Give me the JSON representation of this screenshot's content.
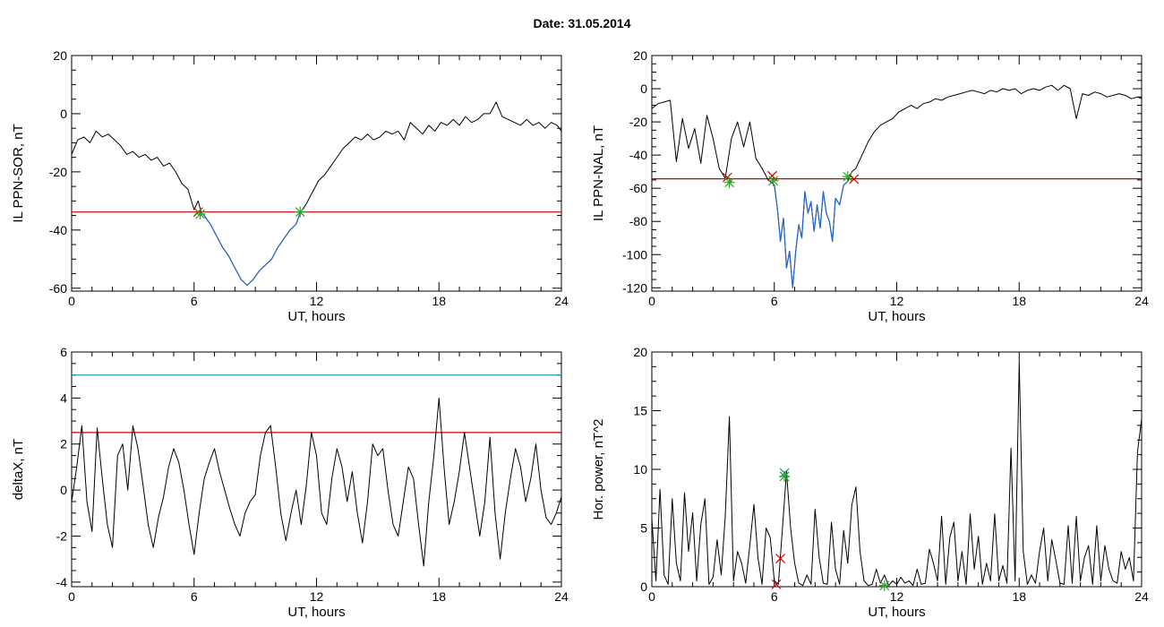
{
  "header": {
    "date_label": "Date:  31.05.2014"
  },
  "chart_data": [
    {
      "id": "sor",
      "type": "line",
      "title": "",
      "xlabel": "UT, hours",
      "ylabel": "IL PPN-SOR, nT",
      "xlim": [
        0,
        24
      ],
      "ylim": [
        -61,
        20
      ],
      "xticks": [
        0,
        6,
        12,
        18,
        24
      ],
      "yticks": [
        -60,
        -40,
        -20,
        0,
        20
      ],
      "grid": false,
      "threshold": {
        "value": -33.8,
        "color": "#cc0000"
      },
      "series": [
        {
          "color": "#000000",
          "x": [
            0,
            0.3,
            0.6,
            0.9,
            1.2,
            1.5,
            1.8,
            2.1,
            2.4,
            2.7,
            3.0,
            3.3,
            3.6,
            3.9,
            4.2,
            4.5,
            4.8,
            5.1,
            5.4,
            5.7,
            6.0,
            6.2,
            6.35,
            6.5,
            6.8,
            7.1,
            7.4,
            7.7,
            8.0,
            8.3,
            8.6,
            8.9,
            9.2,
            9.5,
            9.8,
            10.1,
            10.4,
            10.7,
            11.0,
            11.2,
            11.5,
            11.8,
            12.1,
            12.4,
            12.7,
            13.0,
            13.3,
            13.6,
            13.9,
            14.2,
            14.5,
            14.8,
            15.1,
            15.4,
            15.7,
            16.0,
            16.3,
            16.6,
            16.9,
            17.2,
            17.5,
            17.8,
            18.1,
            18.4,
            18.7,
            19.0,
            19.3,
            19.6,
            19.9,
            20.2,
            20.5,
            20.8,
            21.1,
            21.4,
            21.7,
            22.0,
            22.3,
            22.6,
            22.9,
            23.2,
            23.5,
            23.8,
            24.0
          ],
          "y": [
            -14,
            -9,
            -8,
            -10,
            -6,
            -8,
            -7,
            -9,
            -11,
            -14,
            -13,
            -15,
            -14,
            -16,
            -15,
            -18,
            -17,
            -20,
            -24,
            -26,
            -33,
            -30,
            -34,
            -35,
            -38,
            -42,
            -46,
            -49,
            -53,
            -57,
            -59,
            -57,
            -54,
            -52,
            -50,
            -46,
            -43,
            -40,
            -38,
            -34,
            -31,
            -27,
            -23,
            -21,
            -18,
            -15,
            -12,
            -10,
            -8,
            -9,
            -7,
            -9,
            -8,
            -6,
            -7,
            -6,
            -9,
            -3,
            -5,
            -7,
            -4,
            -6,
            -3,
            -4,
            -2,
            -4,
            -1,
            -3,
            -2,
            0,
            0,
            4,
            -1,
            -2,
            -3,
            -4,
            -2,
            -4,
            -3,
            -5,
            -3,
            -4,
            -6
          ]
        }
      ],
      "highlight": {
        "from": 6.3,
        "to": 11.2,
        "color": "#2266cc"
      },
      "markers": [
        {
          "x": 6.2,
          "y": -33.8,
          "symbol": "x",
          "color": "#cc0000"
        },
        {
          "x": 6.3,
          "y": -34.5,
          "symbol": "*",
          "color": "#22aa22"
        },
        {
          "x": 11.2,
          "y": -33.8,
          "symbol": "*",
          "color": "#22aa22"
        }
      ]
    },
    {
      "id": "nal",
      "type": "line",
      "title": "",
      "xlabel": "UT, hours",
      "ylabel": "IL PPN-NAL, nT",
      "xlim": [
        0,
        24
      ],
      "ylim": [
        -122,
        20
      ],
      "xticks": [
        0,
        6,
        12,
        18,
        24
      ],
      "yticks": [
        -120,
        -100,
        -80,
        -60,
        -40,
        -20,
        0,
        20
      ],
      "grid": false,
      "threshold": {
        "value": -54.3,
        "color": "#cc0000"
      },
      "series": [
        {
          "color": "#000000",
          "x": [
            0,
            0.3,
            0.6,
            0.9,
            1.2,
            1.5,
            1.8,
            2.1,
            2.4,
            2.7,
            3.0,
            3.3,
            3.6,
            3.9,
            4.2,
            4.5,
            4.8,
            5.1,
            5.4,
            5.7,
            6.0,
            6.15,
            6.3,
            6.45,
            6.6,
            6.75,
            6.9,
            7.05,
            7.2,
            7.35,
            7.5,
            7.65,
            7.8,
            7.95,
            8.1,
            8.25,
            8.4,
            8.55,
            8.7,
            8.85,
            9.0,
            9.2,
            9.4,
            9.6,
            9.8,
            10.0,
            10.3,
            10.6,
            10.9,
            11.2,
            11.5,
            11.8,
            12.1,
            12.4,
            12.7,
            13.0,
            13.3,
            13.6,
            13.9,
            14.2,
            14.5,
            14.8,
            15.1,
            15.4,
            15.7,
            16.0,
            16.3,
            16.6,
            16.9,
            17.2,
            17.5,
            17.8,
            18.1,
            18.4,
            18.7,
            19.0,
            19.3,
            19.6,
            19.9,
            20.2,
            20.5,
            20.8,
            21.1,
            21.4,
            21.7,
            22.0,
            22.3,
            22.6,
            22.9,
            23.2,
            23.5,
            23.8,
            24.0
          ],
          "y": [
            -12,
            -9,
            -8,
            -7,
            -44,
            -18,
            -36,
            -24,
            -45,
            -16,
            -30,
            -48,
            -54,
            -30,
            -20,
            -35,
            -20,
            -42,
            -48,
            -55,
            -58,
            -72,
            -92,
            -78,
            -108,
            -98,
            -120,
            -98,
            -82,
            -90,
            -62,
            -75,
            -68,
            -86,
            -70,
            -84,
            -62,
            -75,
            -80,
            -92,
            -66,
            -70,
            -58,
            -56,
            -50,
            -48,
            -40,
            -32,
            -26,
            -22,
            -20,
            -18,
            -14,
            -12,
            -10,
            -12,
            -9,
            -8,
            -6,
            -7,
            -5,
            -4,
            -3,
            -2,
            -1,
            -2,
            -3,
            -1,
            -2,
            0,
            -1,
            0,
            -3,
            -1,
            0,
            -1,
            1,
            2,
            -1,
            2,
            0,
            -18,
            -3,
            -4,
            -2,
            -3,
            -5,
            -4,
            -3,
            -4,
            -6,
            -5,
            -6
          ]
        }
      ],
      "highlight": {
        "from": 5.9,
        "to": 9.7,
        "color": "#2266cc"
      },
      "markers": [
        {
          "x": 3.7,
          "y": -53.5,
          "symbol": "x",
          "color": "#cc0000"
        },
        {
          "x": 3.8,
          "y": -56.5,
          "symbol": "*",
          "color": "#22aa22"
        },
        {
          "x": 5.9,
          "y": -52.5,
          "symbol": "x",
          "color": "#cc0000"
        },
        {
          "x": 5.95,
          "y": -55.5,
          "symbol": "*",
          "color": "#22aa22"
        },
        {
          "x": 9.6,
          "y": -53.0,
          "symbol": "*",
          "color": "#22aa22"
        },
        {
          "x": 9.9,
          "y": -54.5,
          "symbol": "x",
          "color": "#cc0000"
        }
      ]
    },
    {
      "id": "deltax",
      "type": "line",
      "title": "",
      "xlabel": "UT, hours",
      "ylabel": "deltaX, nT",
      "xlim": [
        0,
        24
      ],
      "ylim": [
        -4.2,
        6
      ],
      "xticks": [
        0,
        6,
        12,
        18,
        24
      ],
      "yticks": [
        -4,
        -2,
        0,
        2,
        4,
        6
      ],
      "grid": false,
      "hlines": [
        {
          "value": 5.0,
          "color": "#1a8aa0"
        },
        {
          "value": 2.5,
          "color": "#cc0000"
        }
      ],
      "series": [
        {
          "color": "#000000",
          "x": [
            0,
            0.25,
            0.5,
            0.75,
            1.0,
            1.25,
            1.5,
            1.75,
            2.0,
            2.25,
            2.5,
            2.75,
            3.0,
            3.25,
            3.5,
            3.75,
            4.0,
            4.25,
            4.5,
            4.75,
            5.0,
            5.25,
            5.5,
            5.75,
            6.0,
            6.25,
            6.5,
            6.75,
            7.0,
            7.25,
            7.5,
            7.75,
            8.0,
            8.25,
            8.5,
            8.75,
            9.0,
            9.25,
            9.5,
            9.75,
            10.0,
            10.25,
            10.5,
            10.75,
            11.0,
            11.25,
            11.5,
            11.75,
            12.0,
            12.25,
            12.5,
            12.75,
            13.0,
            13.25,
            13.5,
            13.75,
            14.0,
            14.25,
            14.5,
            14.75,
            15.0,
            15.25,
            15.5,
            15.75,
            16.0,
            16.25,
            16.5,
            16.75,
            17.0,
            17.25,
            17.5,
            17.75,
            18.0,
            18.25,
            18.5,
            18.75,
            19.0,
            19.25,
            19.5,
            19.75,
            20.0,
            20.25,
            20.5,
            20.75,
            21.0,
            21.25,
            21.5,
            21.75,
            22.0,
            22.25,
            22.5,
            22.75,
            23.0,
            23.25,
            23.5,
            23.75,
            24.0
          ],
          "y": [
            -0.5,
            1.0,
            2.8,
            -0.5,
            -1.8,
            2.7,
            0.5,
            -1.5,
            -2.5,
            1.5,
            2.0,
            0.0,
            2.8,
            1.8,
            0.2,
            -1.5,
            -2.5,
            -1.2,
            -0.3,
            1.0,
            1.8,
            1.2,
            0.0,
            -1.5,
            -2.8,
            -1.0,
            0.5,
            1.2,
            1.8,
            0.8,
            0.0,
            -0.8,
            -1.5,
            -2.0,
            -1.0,
            -0.5,
            -0.2,
            1.5,
            2.5,
            2.8,
            1.0,
            -1.0,
            -2.2,
            -1.0,
            0.0,
            -1.5,
            0.2,
            2.5,
            1.5,
            -1.0,
            -1.5,
            0.5,
            1.8,
            1.0,
            -0.5,
            0.8,
            -1.0,
            -2.3,
            -0.5,
            2.0,
            1.5,
            1.8,
            0.0,
            -1.5,
            -2.0,
            -0.5,
            1.0,
            0.5,
            -1.5,
            -3.3,
            -0.5,
            1.5,
            4.0,
            1.0,
            -1.5,
            -0.5,
            0.8,
            2.5,
            1.0,
            -0.5,
            -2.0,
            -0.5,
            2.3,
            -1.0,
            -3.0,
            -1.0,
            0.5,
            1.8,
            1.0,
            -0.5,
            0.5,
            2.0,
            0.0,
            -1.2,
            -1.5,
            -1.0,
            -0.3
          ]
        }
      ]
    },
    {
      "id": "power",
      "type": "line",
      "title": "",
      "xlabel": "UT, hours",
      "ylabel": "Hor. power, nT^2",
      "xlim": [
        0,
        24
      ],
      "ylim": [
        0,
        20
      ],
      "xticks": [
        0,
        6,
        12,
        18,
        24
      ],
      "yticks": [
        0,
        5,
        10,
        15,
        20
      ],
      "grid": false,
      "series": [
        {
          "color": "#000000",
          "x": [
            0,
            0.2,
            0.4,
            0.6,
            0.8,
            1.0,
            1.2,
            1.4,
            1.6,
            1.8,
            2.0,
            2.2,
            2.4,
            2.6,
            2.8,
            3.0,
            3.2,
            3.4,
            3.6,
            3.8,
            4.0,
            4.2,
            4.4,
            4.6,
            4.8,
            5.0,
            5.2,
            5.4,
            5.6,
            5.8,
            6.0,
            6.2,
            6.4,
            6.6,
            6.8,
            7.0,
            7.2,
            7.4,
            7.6,
            7.8,
            8.0,
            8.2,
            8.4,
            8.6,
            8.8,
            9.0,
            9.2,
            9.4,
            9.6,
            9.8,
            10.0,
            10.2,
            10.4,
            10.6,
            10.8,
            11.0,
            11.2,
            11.4,
            11.6,
            11.8,
            12.0,
            12.2,
            12.4,
            12.6,
            12.8,
            13.0,
            13.2,
            13.4,
            13.6,
            13.8,
            14.0,
            14.2,
            14.4,
            14.6,
            14.8,
            15.0,
            15.2,
            15.4,
            15.6,
            15.8,
            16.0,
            16.2,
            16.4,
            16.6,
            16.8,
            17.0,
            17.2,
            17.4,
            17.6,
            17.8,
            18.0,
            18.2,
            18.4,
            18.6,
            18.8,
            19.0,
            19.2,
            19.4,
            19.6,
            19.8,
            20.0,
            20.2,
            20.4,
            20.6,
            20.8,
            21.0,
            21.2,
            21.4,
            21.6,
            21.8,
            22.0,
            22.2,
            22.4,
            22.6,
            22.8,
            23.0,
            23.2,
            23.4,
            23.6,
            23.8,
            24.0
          ],
          "y": [
            5.8,
            0.5,
            8.3,
            1.0,
            0.2,
            7.5,
            2.0,
            0.5,
            8.0,
            3.0,
            6.3,
            0.5,
            5.3,
            7.5,
            0.2,
            0.8,
            4.0,
            1.0,
            6.0,
            14.5,
            0.5,
            3.0,
            2.0,
            0.3,
            3.5,
            7.0,
            2.5,
            0.2,
            5.0,
            4.2,
            0.5,
            0.2,
            5.0,
            9.8,
            5.0,
            2.0,
            0.3,
            0.1,
            1.0,
            0.2,
            6.6,
            2.5,
            0.3,
            0.2,
            5.5,
            1.5,
            0.2,
            4.8,
            2.0,
            7.0,
            8.5,
            3.0,
            0.5,
            0.1,
            0.2,
            1.5,
            0.3,
            1.0,
            0.1,
            0.5,
            0.2,
            0.8,
            0.3,
            0.5,
            0.1,
            1.5,
            0.2,
            0.3,
            3.2,
            2.0,
            0.5,
            6.0,
            0.2,
            4.2,
            5.5,
            0.5,
            3.0,
            0.2,
            6.2,
            1.5,
            4.3,
            0.2,
            2.0,
            0.5,
            6.2,
            0.5,
            1.8,
            0.3,
            11.8,
            0.5,
            19.2,
            3.0,
            0.2,
            1.0,
            0.3,
            3.0,
            5.0,
            0.5,
            4.0,
            2.2,
            0.3,
            0.2,
            5.2,
            0.3,
            6.0,
            0.5,
            2.5,
            3.5,
            0.2,
            5.2,
            0.5,
            3.5,
            1.5,
            0.5,
            0.3,
            3.0,
            1.5,
            2.5,
            0.5,
            11.5,
            14.3
          ]
        }
      ],
      "markers": [
        {
          "x": 6.5,
          "y": 9.7,
          "symbol": "x",
          "color": "#1a8aa0"
        },
        {
          "x": 6.5,
          "y": 9.4,
          "symbol": "*",
          "color": "#22aa22"
        },
        {
          "x": 6.3,
          "y": 2.4,
          "symbol": "x",
          "color": "#cc0000"
        },
        {
          "x": 6.1,
          "y": 0.2,
          "symbol": "x",
          "color": "#cc0000"
        },
        {
          "x": 11.4,
          "y": 0.1,
          "symbol": "*",
          "color": "#22aa22"
        }
      ]
    }
  ]
}
